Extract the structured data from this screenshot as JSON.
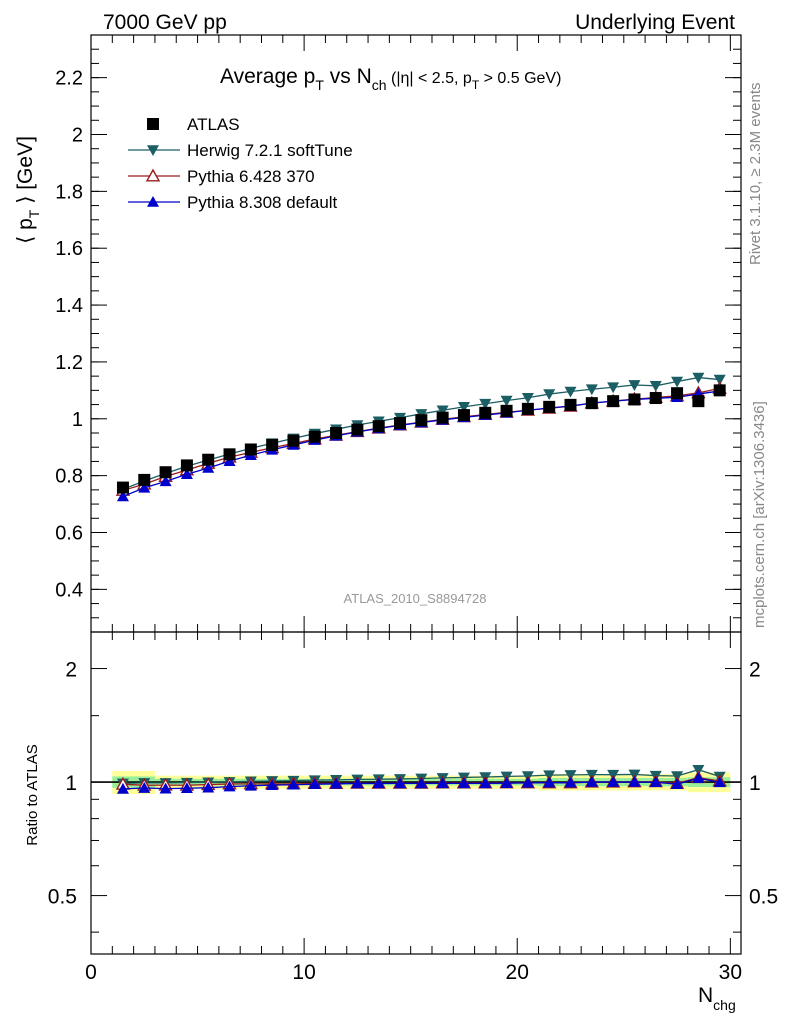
{
  "header": {
    "left": "7000 GeV pp",
    "right": "Underlying Event"
  },
  "title": {
    "main": "Average p",
    "main_sub": "T",
    "vs": " vs N",
    "vs_sub": "ch",
    "cuts_a": " (|η| < 2.5, p",
    "cuts_sub": "T",
    "cuts_b": " > 0.5 GeV)"
  },
  "side_labels": {
    "rivet": "Rivet 3.1.10, ≥ 2.3M events",
    "mcplots": "mcplots.cern.ch [arXiv:1306.3436]"
  },
  "analysis_id": "ATLAS_2010_S8894728",
  "axes": {
    "ylabel_main": "⟨ p",
    "ylabel_sub": "T",
    "ylabel_rest": " ⟩ [GeV]",
    "ylabel_ratio": "Ratio to ATLAS",
    "xlabel": "N",
    "xlabel_sub": "chg"
  },
  "colors": {
    "atlas": "#000000",
    "herwig": "#1b5e63",
    "pythia6": "#9b1c1c",
    "pythia8": "#0000cc",
    "band_outer": "#ffff99",
    "band_inner": "#99ee99"
  },
  "chart_data": {
    "type": "scatter",
    "x": [
      1.5,
      2.5,
      3.5,
      4.5,
      5.5,
      6.5,
      7.5,
      8.5,
      9.5,
      10.5,
      11.5,
      12.5,
      13.5,
      14.5,
      15.5,
      16.5,
      17.5,
      18.5,
      19.5,
      20.5,
      21.5,
      22.5,
      23.5,
      24.5,
      25.5,
      26.5,
      27.5,
      28.5,
      29.5
    ],
    "xlim": [
      0,
      30.5
    ],
    "xticks": [
      0,
      10,
      20,
      30
    ],
    "main_ylim": [
      0.25,
      2.35
    ],
    "main_yticks": [
      "0.4",
      "0.6",
      "0.8",
      "1",
      "1.2",
      "1.4",
      "1.6",
      "1.8",
      "2",
      "2.2"
    ],
    "ratio_ylim": [
      0.35,
      2.5
    ],
    "ratio_yticks": [
      "0.5",
      "1",
      "2"
    ],
    "series": [
      {
        "name": "ATLAS",
        "marker": "square",
        "color_key": "atlas",
        "values": [
          0.758,
          0.785,
          0.812,
          0.836,
          0.856,
          0.875,
          0.892,
          0.908,
          0.923,
          0.937,
          0.95,
          0.962,
          0.974,
          0.985,
          0.995,
          1.004,
          1.013,
          1.021,
          1.028,
          1.035,
          1.042,
          1.049,
          1.055,
          1.062,
          1.068,
          1.073,
          1.09,
          1.062,
          1.1
        ]
      },
      {
        "name": "Herwig 7.2.1 softTune",
        "marker": "tri-down",
        "color_key": "herwig",
        "values": [
          0.752,
          0.781,
          0.808,
          0.833,
          0.855,
          0.876,
          0.896,
          0.914,
          0.931,
          0.948,
          0.963,
          0.978,
          0.991,
          1.004,
          1.017,
          1.03,
          1.042,
          1.053,
          1.064,
          1.074,
          1.087,
          1.096,
          1.104,
          1.111,
          1.119,
          1.116,
          1.131,
          1.145,
          1.138
        ]
      },
      {
        "name": "Pythia 6.428 370",
        "marker": "tri-up-open",
        "color_key": "pythia6",
        "values": [
          0.748,
          0.77,
          0.797,
          0.82,
          0.843,
          0.865,
          0.882,
          0.898,
          0.913,
          0.929,
          0.942,
          0.955,
          0.967,
          0.978,
          0.988,
          0.998,
          1.007,
          1.015,
          1.023,
          1.03,
          1.037,
          1.044,
          1.055,
          1.062,
          1.069,
          1.075,
          1.081,
          1.091,
          1.107
        ]
      },
      {
        "name": "Pythia 8.308 default",
        "marker": "tri-up",
        "color_key": "pythia8",
        "values": [
          0.727,
          0.757,
          0.78,
          0.805,
          0.827,
          0.851,
          0.872,
          0.891,
          0.908,
          0.925,
          0.94,
          0.954,
          0.966,
          0.977,
          0.987,
          0.996,
          1.005,
          1.013,
          1.021,
          1.03,
          1.038,
          1.045,
          1.055,
          1.062,
          1.068,
          1.072,
          1.076,
          1.087,
          1.098
        ]
      }
    ],
    "band": {
      "outer": [
        0.07,
        0.07,
        0.04,
        0.04,
        0.04,
        0.04,
        0.04,
        0.04,
        0.04,
        0.04,
        0.04,
        0.04,
        0.04,
        0.04,
        0.04,
        0.04,
        0.04,
        0.04,
        0.04,
        0.04,
        0.05,
        0.05,
        0.05,
        0.05,
        0.05,
        0.05,
        0.05,
        0.06,
        0.06
      ],
      "inner": [
        0.035,
        0.035,
        0.02,
        0.02,
        0.02,
        0.02,
        0.02,
        0.02,
        0.02,
        0.02,
        0.02,
        0.02,
        0.02,
        0.02,
        0.02,
        0.02,
        0.02,
        0.02,
        0.02,
        0.02,
        0.025,
        0.025,
        0.025,
        0.025,
        0.025,
        0.025,
        0.025,
        0.03,
        0.03
      ]
    },
    "legend_position": "top-left",
    "ratio_scale": "log"
  }
}
